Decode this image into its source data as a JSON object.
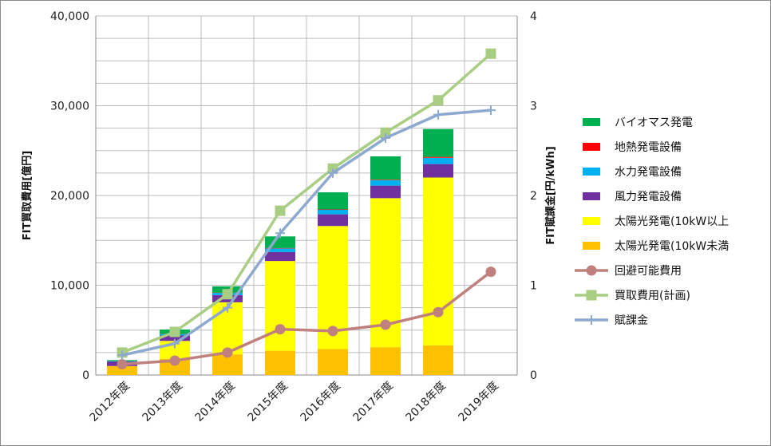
{
  "chart_data": {
    "type": "bar",
    "stacked": true,
    "categories": [
      "2012年度",
      "2013年度",
      "2014年度",
      "2015年度",
      "2016年度",
      "2017年度",
      "2018年度",
      "2019年度"
    ],
    "ylabel": "FIT買取費用[億円]",
    "y2label": "FIT賦課金[円/kWh]",
    "ylim": [
      0,
      40000
    ],
    "y2lim": [
      0,
      4
    ],
    "yticks": [
      "0",
      "10,000",
      "20,000",
      "30,000",
      "40,000"
    ],
    "y2ticks": [
      "0",
      "1",
      "2",
      "3",
      "4"
    ],
    "grid": true,
    "legend_position": "right",
    "bar_series": [
      {
        "name": "太陽光発電(10kW未満",
        "color": "#ffc000",
        "values": [
          1000,
          1800,
          2300,
          2700,
          2900,
          3100,
          3300,
          null
        ]
      },
      {
        "name": "太陽光発電(10kW以上",
        "color": "#ffff00",
        "values": [
          0,
          2000,
          5800,
          10000,
          13700,
          16600,
          18700,
          null
        ]
      },
      {
        "name": "風力発電設備",
        "color": "#7030a0",
        "values": [
          500,
          600,
          800,
          1000,
          1300,
          1400,
          1500,
          null
        ]
      },
      {
        "name": "水力発電設備",
        "color": "#00b0f0",
        "values": [
          50,
          150,
          250,
          400,
          500,
          600,
          700,
          null
        ]
      },
      {
        "name": "地熱発電設備",
        "color": "#ff0000",
        "values": [
          10,
          20,
          30,
          40,
          50,
          60,
          100,
          null
        ]
      },
      {
        "name": "バイオマス発電",
        "color": "#00b050",
        "values": [
          100,
          500,
          700,
          1300,
          1900,
          2600,
          3100,
          null
        ]
      }
    ],
    "line_series": [
      {
        "name": "回避可能費用",
        "color": "#c0807e",
        "marker": "circle",
        "axis": "y2",
        "values": [
          0.12,
          0.16,
          0.25,
          0.51,
          0.49,
          0.56,
          0.7,
          1.15
        ]
      },
      {
        "name": "買取費用(計画)",
        "color": "#a9cd82",
        "marker": "square",
        "axis": "y",
        "values": [
          2500,
          4800,
          9000,
          18300,
          23000,
          27000,
          30600,
          35800
        ]
      },
      {
        "name": "賦課金",
        "color": "#8ea9d0",
        "marker": "plus",
        "axis": "y2",
        "values": [
          0.22,
          0.35,
          0.75,
          1.58,
          2.25,
          2.64,
          2.9,
          2.95
        ]
      }
    ]
  }
}
